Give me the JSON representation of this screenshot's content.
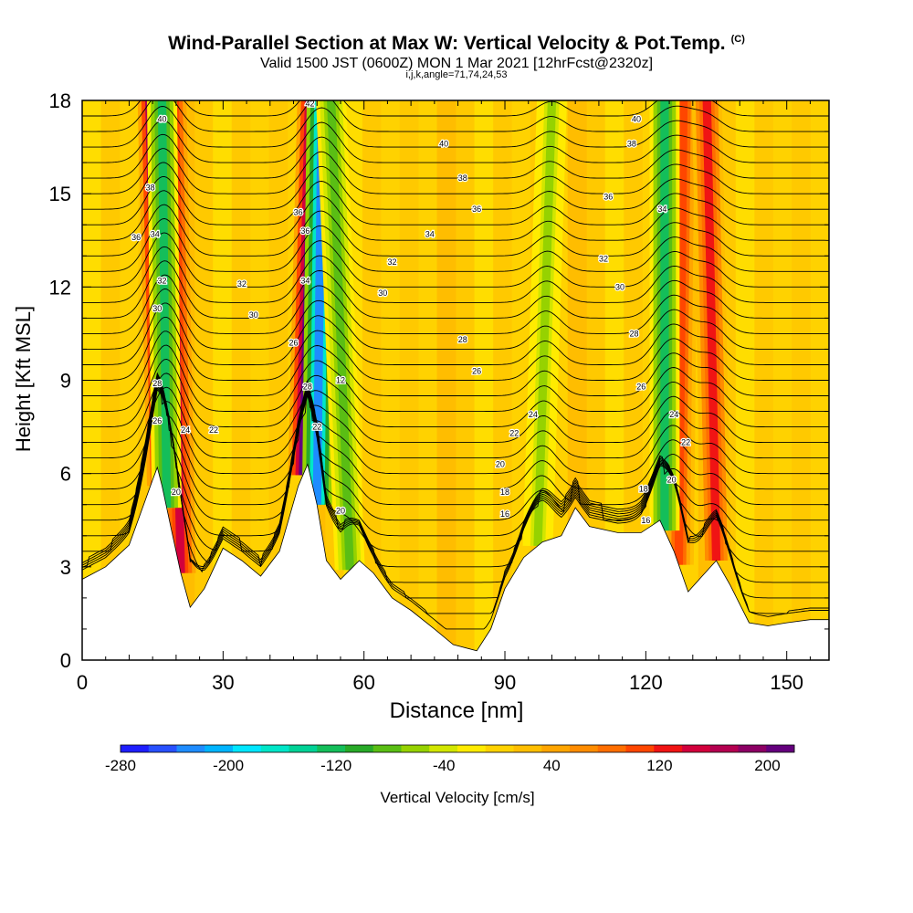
{
  "header": {
    "title": "Wind-Parallel Section at Max W: Vertical Velocity & Pot.Temp.",
    "title_tag": "(C)",
    "subtitle": "Valid 1500 JST (0600Z) MON 1 Mar 2021 [12hrFcst@2320z]",
    "subtitle2": "i,j,k,angle=71,74,24,53"
  },
  "chart_data": {
    "type": "heatmap",
    "title": "Wind-Parallel Section at Max W: Vertical Velocity & Pot.Temp.",
    "xlabel": "Distance [nm]",
    "ylabel": "Height [Kft MSL]",
    "xlim": [
      0,
      159
    ],
    "ylim": [
      0,
      18
    ],
    "xticks": [
      0,
      30,
      60,
      90,
      120,
      150
    ],
    "yticks": [
      0,
      3,
      6,
      9,
      12,
      15,
      18
    ],
    "colorbar": {
      "label": "Vertical Velocity [cm/s]",
      "range": [
        -280,
        220
      ],
      "tick_labels": [
        -280,
        -200,
        -120,
        -40,
        40,
        120,
        200
      ],
      "colors": [
        "#1e1eff",
        "#2850ff",
        "#1e8cff",
        "#00b4ff",
        "#00e6ff",
        "#00e6c8",
        "#00d296",
        "#14be5a",
        "#28aa28",
        "#5abe14",
        "#96d200",
        "#d2e600",
        "#ffeb00",
        "#ffd200",
        "#ffbe00",
        "#ffa500",
        "#ff8c00",
        "#ff6e00",
        "#ff4600",
        "#f01414",
        "#d2003c",
        "#b40050",
        "#8c0064",
        "#64007d"
      ]
    },
    "terrain_kft": [
      [
        0,
        2.6
      ],
      [
        5,
        3.0
      ],
      [
        10,
        3.7
      ],
      [
        15,
        5.8
      ],
      [
        16,
        6.2
      ],
      [
        17,
        5.6
      ],
      [
        19,
        4.2
      ],
      [
        21,
        2.8
      ],
      [
        23,
        1.7
      ],
      [
        26,
        2.3
      ],
      [
        30,
        3.6
      ],
      [
        34,
        3.2
      ],
      [
        38,
        2.7
      ],
      [
        42,
        3.5
      ],
      [
        46,
        5.6
      ],
      [
        48,
        6.3
      ],
      [
        50,
        5.0
      ],
      [
        52,
        3.2
      ],
      [
        55,
        2.6
      ],
      [
        59,
        3.2
      ],
      [
        62,
        2.8
      ],
      [
        66,
        2.0
      ],
      [
        70,
        1.6
      ],
      [
        75,
        1.0
      ],
      [
        79,
        0.5
      ],
      [
        84,
        0.3
      ],
      [
        87,
        1.0
      ],
      [
        90,
        2.3
      ],
      [
        94,
        3.3
      ],
      [
        98,
        3.8
      ],
      [
        102,
        4.0
      ],
      [
        105,
        4.9
      ],
      [
        108,
        4.3
      ],
      [
        114,
        4.1
      ],
      [
        119,
        4.1
      ],
      [
        123,
        4.5
      ],
      [
        126,
        3.5
      ],
      [
        129,
        2.2
      ],
      [
        132,
        2.7
      ],
      [
        135,
        3.2
      ],
      [
        138,
        2.4
      ],
      [
        142,
        1.2
      ],
      [
        146,
        1.1
      ],
      [
        150,
        1.2
      ],
      [
        155,
        1.3
      ],
      [
        159,
        1.3
      ]
    ],
    "updraft_bands": [
      {
        "x_bottom": 17,
        "x_top": 15,
        "w_max": 210
      },
      {
        "x_bottom": 21,
        "x_top": 19,
        "w_max": 150
      },
      {
        "x_bottom": 47,
        "x_top": 49,
        "w_max": 200
      },
      {
        "x_bottom": 127,
        "x_top": 128,
        "w_max": 100
      },
      {
        "x_bottom": 135,
        "x_top": 133,
        "w_max": 120
      }
    ],
    "downdraft_bands": [
      {
        "x_bottom": 18,
        "x_top": 17,
        "w_min": -120
      },
      {
        "x_bottom": 50,
        "x_top": 51,
        "w_min": -220
      },
      {
        "x_bottom": 57,
        "x_top": 53,
        "w_min": -90
      },
      {
        "x_bottom": 124,
        "x_top": 124,
        "w_min": -120
      },
      {
        "x_bottom": 97,
        "x_top": 100,
        "w_min": -60
      }
    ],
    "theta_contours_labels": [
      "18",
      "20",
      "22",
      "24",
      "26",
      "28",
      "30",
      "32",
      "34",
      "36",
      "38",
      "40",
      "42"
    ],
    "contour_labels": [
      {
        "text": "40",
        "x": 17.0,
        "y": 17.4
      },
      {
        "text": "38",
        "x": 14.5,
        "y": 15.2
      },
      {
        "text": "36",
        "x": 11.5,
        "y": 13.6
      },
      {
        "text": "34",
        "x": 15.5,
        "y": 13.7
      },
      {
        "text": "32",
        "x": 17.0,
        "y": 12.2
      },
      {
        "text": "30",
        "x": 16.0,
        "y": 11.3
      },
      {
        "text": "28",
        "x": 16.0,
        "y": 8.9
      },
      {
        "text": "26",
        "x": 16.0,
        "y": 7.7
      },
      {
        "text": "24",
        "x": 22.0,
        "y": 7.4
      },
      {
        "text": "22",
        "x": 28.0,
        "y": 7.4
      },
      {
        "text": "20",
        "x": 20.0,
        "y": 5.4
      },
      {
        "text": "32",
        "x": 34.0,
        "y": 12.1
      },
      {
        "text": "30",
        "x": 36.5,
        "y": 11.1
      },
      {
        "text": "26",
        "x": 45.0,
        "y": 10.2
      },
      {
        "text": "36",
        "x": 46.0,
        "y": 14.4
      },
      {
        "text": "36",
        "x": 47.5,
        "y": 13.8
      },
      {
        "text": "34",
        "x": 47.5,
        "y": 12.2
      },
      {
        "text": "42",
        "x": 48.5,
        "y": 17.9
      },
      {
        "text": "28",
        "x": 48.0,
        "y": 8.8
      },
      {
        "text": "22",
        "x": 50.0,
        "y": 7.5
      },
      {
        "text": "12",
        "x": 55.0,
        "y": 9.0
      },
      {
        "text": "20",
        "x": 55.0,
        "y": 4.8
      },
      {
        "text": "40",
        "x": 77.0,
        "y": 16.6
      },
      {
        "text": "38",
        "x": 81.0,
        "y": 15.5
      },
      {
        "text": "36",
        "x": 84.0,
        "y": 14.5
      },
      {
        "text": "34",
        "x": 74.0,
        "y": 13.7
      },
      {
        "text": "32",
        "x": 66.0,
        "y": 12.8
      },
      {
        "text": "30",
        "x": 64.0,
        "y": 11.8
      },
      {
        "text": "28",
        "x": 81.0,
        "y": 10.3
      },
      {
        "text": "26",
        "x": 84.0,
        "y": 9.3
      },
      {
        "text": "24",
        "x": 96.0,
        "y": 7.9
      },
      {
        "text": "22",
        "x": 92.0,
        "y": 7.3
      },
      {
        "text": "20",
        "x": 89.0,
        "y": 6.3
      },
      {
        "text": "18",
        "x": 90.0,
        "y": 5.4
      },
      {
        "text": "16",
        "x": 90.0,
        "y": 4.7
      },
      {
        "text": "40",
        "x": 118.0,
        "y": 17.4
      },
      {
        "text": "38",
        "x": 117.0,
        "y": 16.6
      },
      {
        "text": "36",
        "x": 112.0,
        "y": 14.9
      },
      {
        "text": "34",
        "x": 123.5,
        "y": 14.5
      },
      {
        "text": "32",
        "x": 111.0,
        "y": 12.9
      },
      {
        "text": "30",
        "x": 114.5,
        "y": 12.0
      },
      {
        "text": "28",
        "x": 117.5,
        "y": 10.5
      },
      {
        "text": "26",
        "x": 119.0,
        "y": 8.8
      },
      {
        "text": "24",
        "x": 126.0,
        "y": 7.9
      },
      {
        "text": "22",
        "x": 128.5,
        "y": 7.0
      },
      {
        "text": "20",
        "x": 125.5,
        "y": 5.8
      },
      {
        "text": "18",
        "x": 119.5,
        "y": 5.5
      },
      {
        "text": "16",
        "x": 120.0,
        "y": 4.5
      }
    ],
    "grid": false
  }
}
